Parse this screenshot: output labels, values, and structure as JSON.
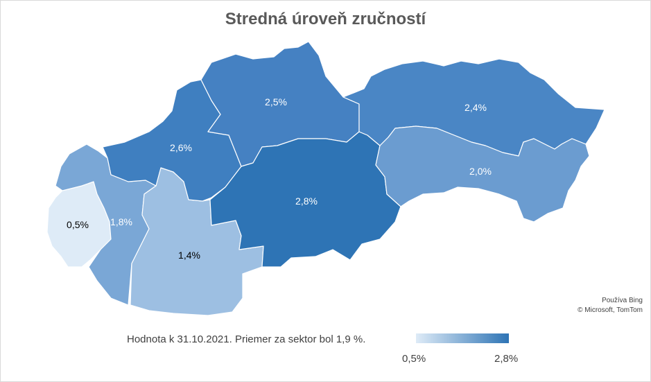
{
  "title": "Stredná úroveň zručností",
  "regions": [
    {
      "id": "bratislava",
      "label": "0,5%",
      "value": 0.5,
      "color": "#deebf7",
      "text_color": "#000000"
    },
    {
      "id": "trnava",
      "label": "1,8%",
      "value": 1.8,
      "color": "#7aa7d6",
      "text_color": "#ffffff"
    },
    {
      "id": "nitra",
      "label": "1,4%",
      "value": 1.4,
      "color": "#9dbfe2",
      "text_color": "#000000"
    },
    {
      "id": "trencin",
      "label": "2,6%",
      "value": 2.6,
      "color": "#3f7fc0",
      "text_color": "#ffffff"
    },
    {
      "id": "zilina",
      "label": "2,5%",
      "value": 2.5,
      "color": "#4581c2",
      "text_color": "#ffffff"
    },
    {
      "id": "banska-bystrica",
      "label": "2,8%",
      "value": 2.8,
      "color": "#2e74b5",
      "text_color": "#ffffff"
    },
    {
      "id": "presov",
      "label": "2,4%",
      "value": 2.4,
      "color": "#4a86c5",
      "text_color": "#ffffff"
    },
    {
      "id": "kosice",
      "label": "2,0%",
      "value": 2.0,
      "color": "#6b9cd0",
      "text_color": "#ffffff"
    }
  ],
  "attribution": {
    "line1": "Používa Bing",
    "line2": "© Microsoft, TomTom"
  },
  "note": "Hodnota k 31.10.2021. Priemer za sektor bol 1,9 %.",
  "legend": {
    "min_label": "0,5%",
    "max_label": "2,8%",
    "min_color": "#deebf7",
    "max_color": "#2e74b5"
  }
}
